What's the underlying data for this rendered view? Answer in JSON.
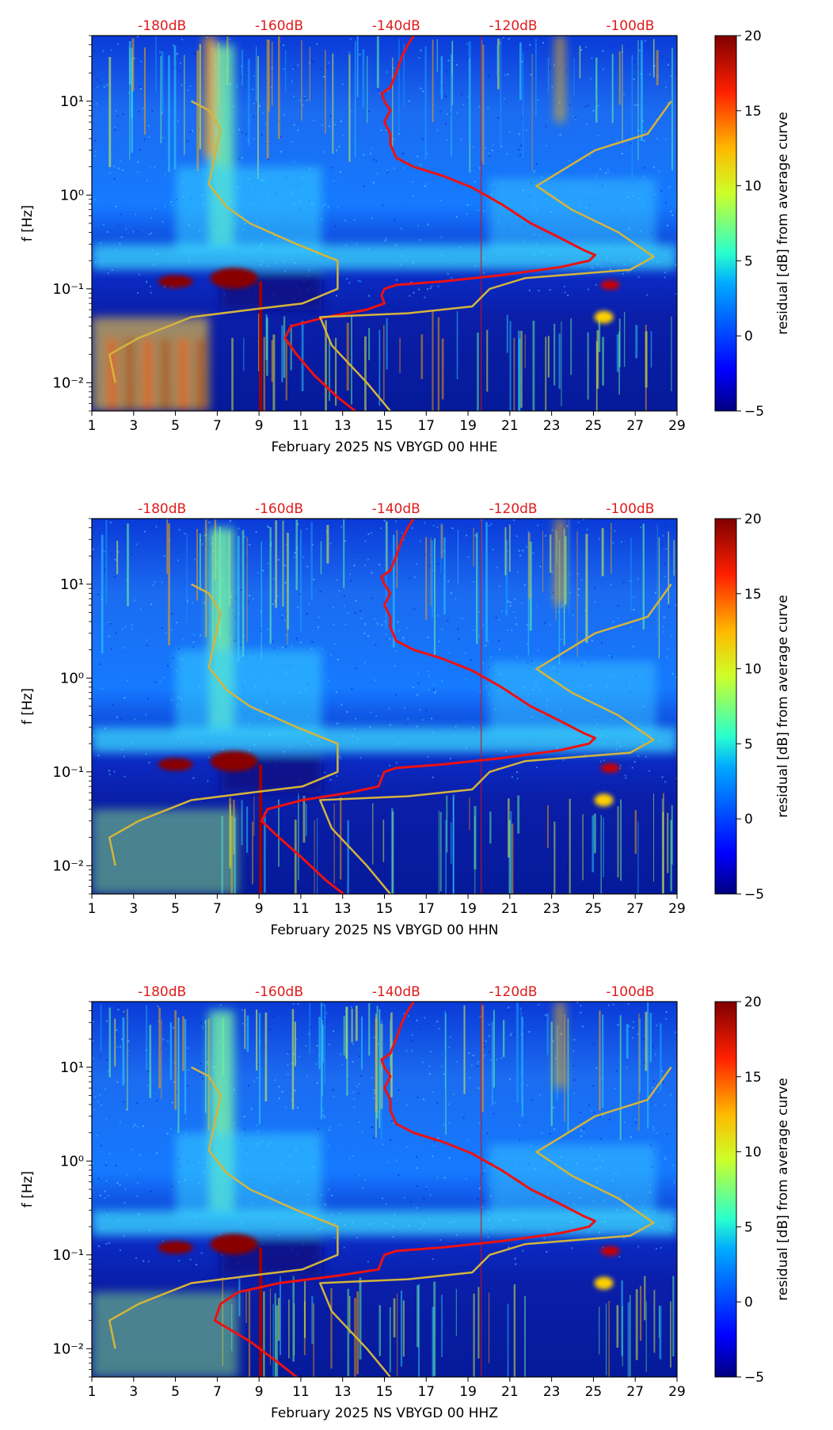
{
  "chart_data": [
    {
      "type": "heatmap",
      "xlabel": "February 2025 NS VBYGD 00 HHE",
      "ylabel": "f [Hz]",
      "xlim": [
        1,
        29
      ],
      "ylim": [
        0.005,
        50
      ],
      "yscale": "log",
      "xticks": [
        1,
        3,
        5,
        7,
        9,
        11,
        13,
        15,
        17,
        19,
        21,
        23,
        25,
        27,
        29
      ],
      "yticks": [
        {
          "value": 0.01,
          "label": "10⁻²"
        },
        {
          "value": 0.1,
          "label": "10⁻¹"
        },
        {
          "value": 1,
          "label": "10⁰"
        },
        {
          "value": 10,
          "label": "10¹"
        }
      ],
      "top_axis_labels": [
        "-180dB",
        "-160dB",
        "-140dB",
        "-120dB",
        "-100dB"
      ],
      "top_axis_values": [
        -180,
        -160,
        -140,
        -120,
        -100
      ],
      "top_axis_range": [
        -192,
        -92
      ],
      "colorbar": {
        "label": "residual [dB] from average curve",
        "range": [
          -5,
          20
        ],
        "ticks": [
          -5,
          0,
          5,
          10,
          15,
          20
        ]
      },
      "overlays": [
        {
          "name": "average PSD",
          "color": "#ee1111",
          "points": [
            [
              -137,
              50
            ],
            [
              -138,
              40
            ],
            [
              -139,
              30
            ],
            [
              -140,
              20
            ],
            [
              -141,
              14
            ],
            [
              -142.5,
              12
            ],
            [
              -142,
              10
            ],
            [
              -141,
              8
            ],
            [
              -142,
              6
            ],
            [
              -141,
              4.5
            ],
            [
              -141,
              3.5
            ],
            [
              -140,
              2.5
            ],
            [
              -137,
              2
            ],
            [
              -132,
              1.6
            ],
            [
              -127,
              1.2
            ],
            [
              -122,
              0.8
            ],
            [
              -117,
              0.5
            ],
            [
              -112,
              0.35
            ],
            [
              -108,
              0.26
            ],
            [
              -106,
              0.23
            ],
            [
              -107,
              0.2
            ],
            [
              -112,
              0.17
            ],
            [
              -122,
              0.14
            ],
            [
              -132,
              0.12
            ],
            [
              -140,
              0.11
            ],
            [
              -142,
              0.1
            ],
            [
              -142.5,
              0.085
            ],
            [
              -142,
              0.07
            ],
            [
              -145,
              0.06
            ],
            [
              -152,
              0.05
            ],
            [
              -158,
              0.04
            ],
            [
              -159,
              0.03
            ],
            [
              -157,
              0.02
            ],
            [
              -154,
              0.012
            ],
            [
              -150,
              0.007
            ],
            [
              -147,
              0.005
            ]
          ]
        },
        {
          "name": "noise model",
          "color": "#d4b43c",
          "points": [
            [
              -188,
              0.01
            ],
            [
              -189,
              0.02
            ],
            [
              -184,
              0.03
            ],
            [
              -175,
              0.05
            ],
            [
              -163,
              0.062
            ],
            [
              -156,
              0.07
            ],
            [
              -150,
              0.1
            ],
            [
              -150,
              0.2
            ],
            [
              -157,
              0.3
            ],
            [
              -165,
              0.5
            ],
            [
              -169,
              0.75
            ],
            [
              -172,
              1.3
            ],
            [
              -170,
              5
            ],
            [
              -172,
              8
            ],
            [
              -175,
              10
            ]
          ]
        },
        {
          "name": "noise model",
          "color": "#d4b43c",
          "points": [
            [
              -141,
              0.005
            ],
            [
              -145,
              0.01
            ],
            [
              -151,
              0.025
            ],
            [
              -153,
              0.05
            ],
            [
              -138,
              0.055
            ],
            [
              -127,
              0.065
            ],
            [
              -124,
              0.1
            ],
            [
              -118,
              0.13
            ],
            [
              -100,
              0.16
            ],
            [
              -96,
              0.22
            ],
            [
              -102,
              0.4
            ],
            [
              -110,
              0.7
            ],
            [
              -116,
              1.25
            ],
            [
              -106,
              3
            ],
            [
              -97,
              4.5
            ],
            [
              -93,
              10
            ]
          ]
        }
      ]
    },
    {
      "type": "heatmap",
      "xlabel": "February 2025 NS VBYGD 00 HHN",
      "ylabel": "f [Hz]",
      "xlim": [
        1,
        29
      ],
      "ylim": [
        0.005,
        50
      ],
      "yscale": "log",
      "xticks": [
        1,
        3,
        5,
        7,
        9,
        11,
        13,
        15,
        17,
        19,
        21,
        23,
        25,
        27,
        29
      ],
      "yticks": [
        {
          "value": 0.01,
          "label": "10⁻²"
        },
        {
          "value": 0.1,
          "label": "10⁻¹"
        },
        {
          "value": 1,
          "label": "10⁰"
        },
        {
          "value": 10,
          "label": "10¹"
        }
      ],
      "top_axis_labels": [
        "-180dB",
        "-160dB",
        "-140dB",
        "-120dB",
        "-100dB"
      ],
      "top_axis_values": [
        -180,
        -160,
        -140,
        -120,
        -100
      ],
      "top_axis_range": [
        -192,
        -92
      ],
      "colorbar": {
        "label": "residual [dB] from average curve",
        "range": [
          -5,
          20
        ],
        "ticks": [
          -5,
          0,
          5,
          10,
          15,
          20
        ]
      },
      "overlays": [
        {
          "name": "average PSD",
          "color": "#ee1111",
          "points": [
            [
              -137,
              50
            ],
            [
              -138,
              40
            ],
            [
              -139,
              30
            ],
            [
              -140,
              20
            ],
            [
              -141,
              14
            ],
            [
              -142.5,
              12
            ],
            [
              -142,
              10
            ],
            [
              -141,
              8
            ],
            [
              -142,
              6
            ],
            [
              -141,
              4.5
            ],
            [
              -141,
              3.5
            ],
            [
              -140,
              2.5
            ],
            [
              -137,
              2
            ],
            [
              -132,
              1.6
            ],
            [
              -127,
              1.2
            ],
            [
              -122,
              0.8
            ],
            [
              -117,
              0.5
            ],
            [
              -112,
              0.35
            ],
            [
              -108,
              0.26
            ],
            [
              -106,
              0.23
            ],
            [
              -107,
              0.2
            ],
            [
              -112,
              0.17
            ],
            [
              -122,
              0.14
            ],
            [
              -132,
              0.12
            ],
            [
              -140,
              0.11
            ],
            [
              -142,
              0.1
            ],
            [
              -142.5,
              0.085
            ],
            [
              -143,
              0.07
            ],
            [
              -148,
              0.06
            ],
            [
              -156,
              0.05
            ],
            [
              -162,
              0.04
            ],
            [
              -163,
              0.03
            ],
            [
              -160,
              0.02
            ],
            [
              -156,
              0.012
            ],
            [
              -152,
              0.007
            ],
            [
              -149,
              0.005
            ]
          ]
        },
        {
          "name": "noise model",
          "color": "#d4b43c",
          "points": [
            [
              -188,
              0.01
            ],
            [
              -189,
              0.02
            ],
            [
              -184,
              0.03
            ],
            [
              -175,
              0.05
            ],
            [
              -163,
              0.062
            ],
            [
              -156,
              0.07
            ],
            [
              -150,
              0.1
            ],
            [
              -150,
              0.2
            ],
            [
              -157,
              0.3
            ],
            [
              -165,
              0.5
            ],
            [
              -169,
              0.75
            ],
            [
              -172,
              1.3
            ],
            [
              -170,
              5
            ],
            [
              -172,
              8
            ],
            [
              -175,
              10
            ]
          ]
        },
        {
          "name": "noise model",
          "color": "#d4b43c",
          "points": [
            [
              -141,
              0.005
            ],
            [
              -145,
              0.01
            ],
            [
              -151,
              0.025
            ],
            [
              -153,
              0.05
            ],
            [
              -138,
              0.055
            ],
            [
              -127,
              0.065
            ],
            [
              -124,
              0.1
            ],
            [
              -118,
              0.13
            ],
            [
              -100,
              0.16
            ],
            [
              -96,
              0.22
            ],
            [
              -102,
              0.4
            ],
            [
              -110,
              0.7
            ],
            [
              -116,
              1.25
            ],
            [
              -106,
              3
            ],
            [
              -97,
              4.5
            ],
            [
              -93,
              10
            ]
          ]
        }
      ]
    },
    {
      "type": "heatmap",
      "xlabel": "February 2025 NS VBYGD 00 HHZ",
      "ylabel": "f [Hz]",
      "xlim": [
        1,
        29
      ],
      "ylim": [
        0.005,
        50
      ],
      "yscale": "log",
      "xticks": [
        1,
        3,
        5,
        7,
        9,
        11,
        13,
        15,
        17,
        19,
        21,
        23,
        25,
        27,
        29
      ],
      "yticks": [
        {
          "value": 0.01,
          "label": "10⁻²"
        },
        {
          "value": 0.1,
          "label": "10⁻¹"
        },
        {
          "value": 1,
          "label": "10⁰"
        },
        {
          "value": 10,
          "label": "10¹"
        }
      ],
      "top_axis_labels": [
        "-180dB",
        "-160dB",
        "-140dB",
        "-120dB",
        "-100dB"
      ],
      "top_axis_values": [
        -180,
        -160,
        -140,
        -120,
        -100
      ],
      "top_axis_range": [
        -192,
        -92
      ],
      "colorbar": {
        "label": "residual [dB] from average curve",
        "range": [
          -5,
          20
        ],
        "ticks": [
          -5,
          0,
          5,
          10,
          15,
          20
        ]
      },
      "overlays": [
        {
          "name": "average PSD",
          "color": "#ee1111",
          "points": [
            [
              -137,
              50
            ],
            [
              -138,
              40
            ],
            [
              -139,
              30
            ],
            [
              -140,
              20
            ],
            [
              -141,
              14
            ],
            [
              -142.5,
              12
            ],
            [
              -142,
              10
            ],
            [
              -141,
              8
            ],
            [
              -142,
              6
            ],
            [
              -141,
              4.5
            ],
            [
              -141,
              3.5
            ],
            [
              -140,
              2.5
            ],
            [
              -137,
              2
            ],
            [
              -132,
              1.6
            ],
            [
              -127,
              1.2
            ],
            [
              -122,
              0.8
            ],
            [
              -117,
              0.5
            ],
            [
              -112,
              0.35
            ],
            [
              -108,
              0.26
            ],
            [
              -106,
              0.23
            ],
            [
              -107,
              0.2
            ],
            [
              -112,
              0.17
            ],
            [
              -122,
              0.14
            ],
            [
              -132,
              0.12
            ],
            [
              -140,
              0.11
            ],
            [
              -142,
              0.1
            ],
            [
              -142.5,
              0.085
            ],
            [
              -143,
              0.07
            ],
            [
              -150,
              0.06
            ],
            [
              -160,
              0.05
            ],
            [
              -167,
              0.04
            ],
            [
              -170,
              0.03
            ],
            [
              -171,
              0.02
            ],
            [
              -165,
              0.012
            ],
            [
              -160,
              0.007
            ],
            [
              -157,
              0.005
            ]
          ]
        },
        {
          "name": "noise model",
          "color": "#d4b43c",
          "points": [
            [
              -188,
              0.01
            ],
            [
              -189,
              0.02
            ],
            [
              -184,
              0.03
            ],
            [
              -175,
              0.05
            ],
            [
              -163,
              0.062
            ],
            [
              -156,
              0.07
            ],
            [
              -150,
              0.1
            ],
            [
              -150,
              0.2
            ],
            [
              -157,
              0.3
            ],
            [
              -165,
              0.5
            ],
            [
              -169,
              0.75
            ],
            [
              -172,
              1.3
            ],
            [
              -170,
              5
            ],
            [
              -172,
              8
            ],
            [
              -175,
              10
            ]
          ]
        },
        {
          "name": "noise model",
          "color": "#d4b43c",
          "points": [
            [
              -141,
              0.005
            ],
            [
              -145,
              0.01
            ],
            [
              -151,
              0.025
            ],
            [
              -153,
              0.05
            ],
            [
              -138,
              0.055
            ],
            [
              -127,
              0.065
            ],
            [
              -124,
              0.1
            ],
            [
              -118,
              0.13
            ],
            [
              -100,
              0.16
            ],
            [
              -96,
              0.22
            ],
            [
              -102,
              0.4
            ],
            [
              -110,
              0.7
            ],
            [
              -116,
              1.25
            ],
            [
              -106,
              3
            ],
            [
              -97,
              4.5
            ],
            [
              -93,
              10
            ]
          ]
        }
      ]
    }
  ],
  "colors": {
    "top_axis_text": "#e01b1b",
    "colormap": [
      "#00007f",
      "#0000ff",
      "#00aaff",
      "#29ffce",
      "#cdff29",
      "#ffb900",
      "#ff2000",
      "#7f0000"
    ]
  }
}
